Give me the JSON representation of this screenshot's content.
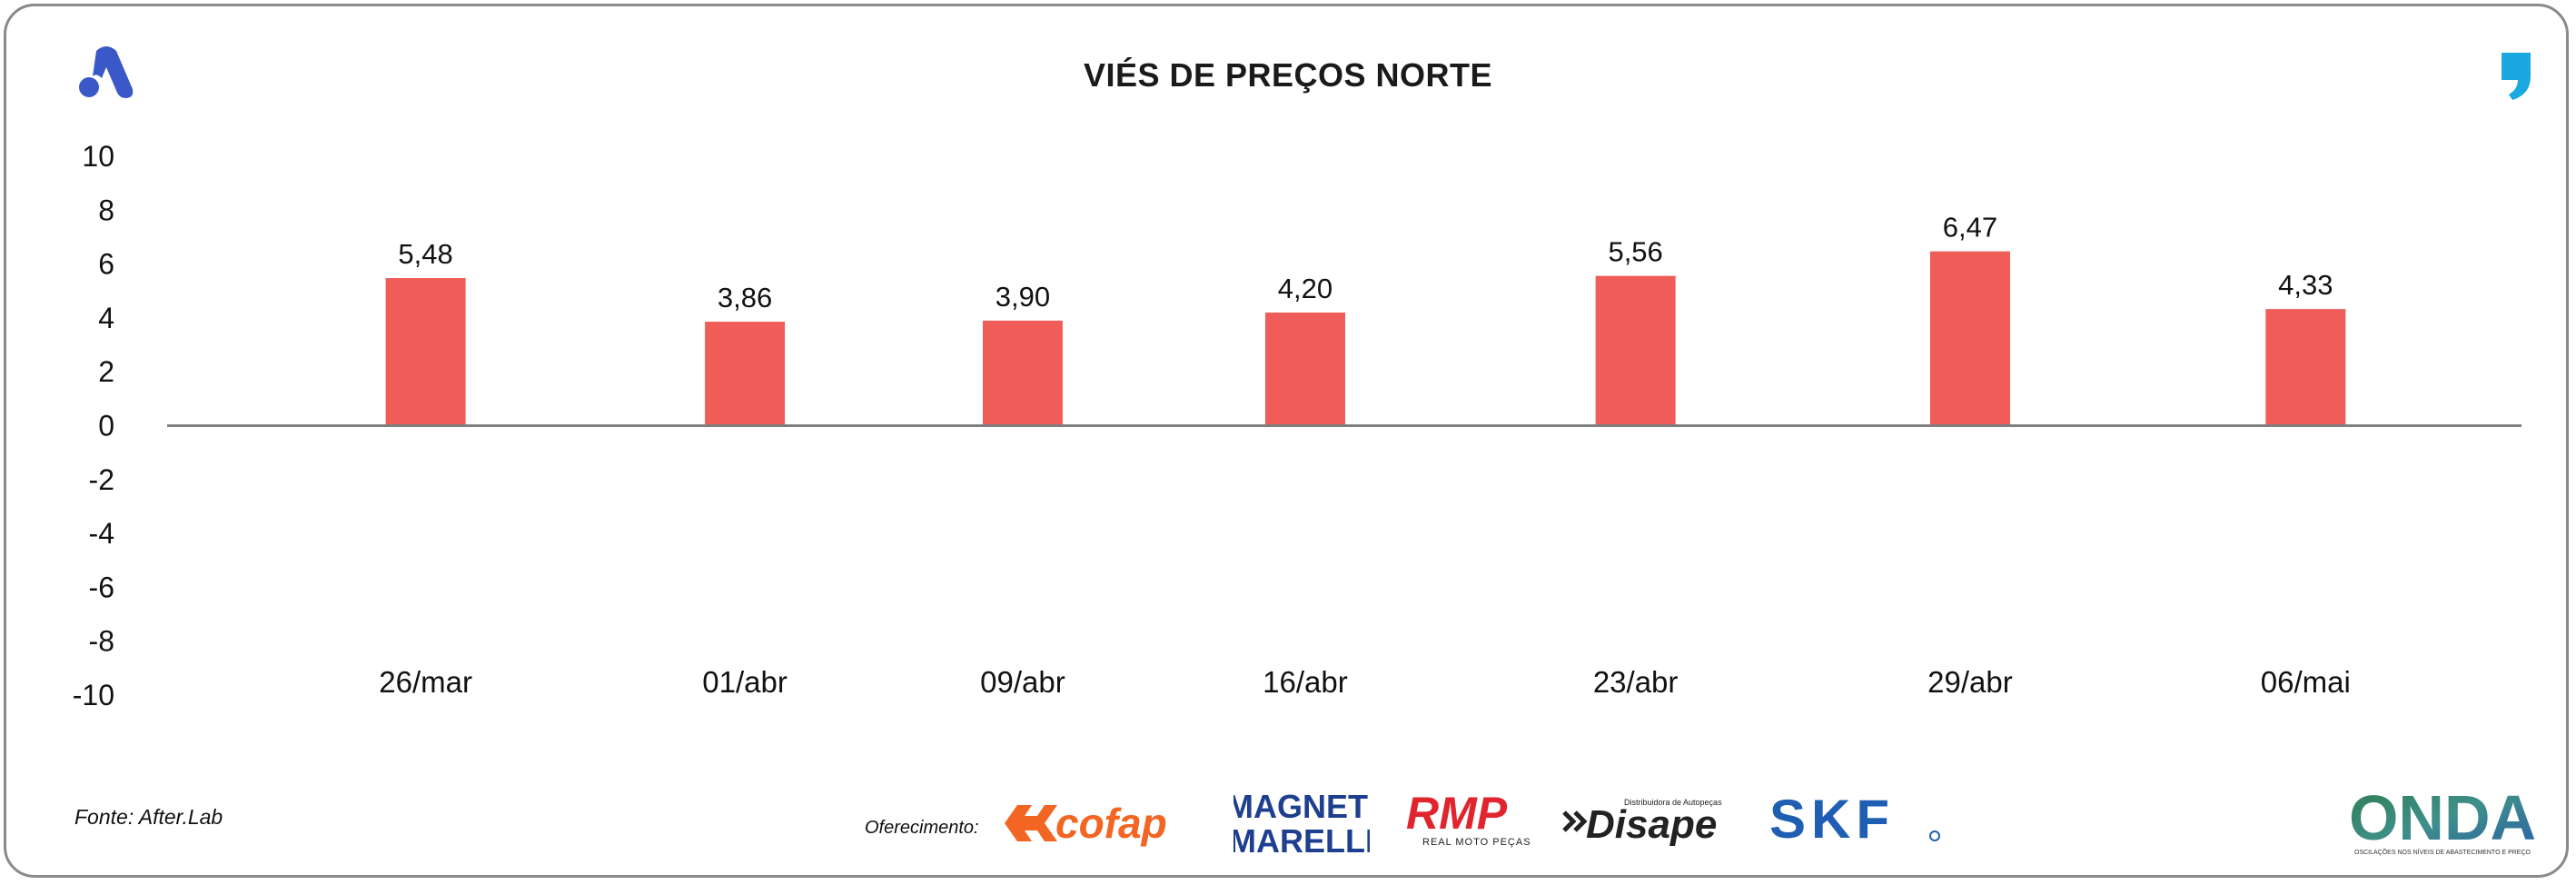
{
  "title": "VIÉS DE PREÇOS NORTE",
  "source": "Fonte: After.Lab",
  "offered_by": "Oferecimento:",
  "sponsors": {
    "cofap": "cofap",
    "magneti_line1": "MAGNETI",
    "magneti_line2": "MARELLI",
    "rmp": "RMP",
    "rmp_sub": "REAL MOTO PEÇAS",
    "disape_top": "Distribuidora de Autopeças",
    "disape": "Disape",
    "skf": "SKF",
    "onda": "ONDA",
    "onda_sub": "OSCILAÇÕES NOS NÍVEIS DE ABASTECIMENTO E PREÇO"
  },
  "colors": {
    "bar": "#f05c57",
    "axis": "#7f7f7f",
    "brand_blue": "#3b58c8",
    "quote_cyan": "#1aa8e0",
    "cofap_orange": "#f26522",
    "magneti_blue": "#1e3f8f",
    "rmp_red": "#e0252f",
    "skf_blue": "#1f5fb3"
  },
  "chart_data": {
    "type": "bar",
    "title": "VIÉS DE PREÇOS NORTE",
    "categories": [
      "26/mar",
      "01/abr",
      "09/abr",
      "16/abr",
      "23/abr",
      "29/abr",
      "06/mai"
    ],
    "values": [
      5.48,
      3.86,
      3.9,
      4.2,
      5.56,
      6.47,
      4.33
    ],
    "data_labels": [
      "5,48",
      "3,86",
      "3,90",
      "4,20",
      "5,56",
      "6,47",
      "4,33"
    ],
    "yticks": [
      "10",
      "8",
      "6",
      "4",
      "2",
      "0",
      "-2",
      "-4",
      "-6",
      "-8",
      "-10"
    ],
    "ylim": [
      -10,
      10
    ],
    "xlabel": "",
    "ylabel": "",
    "grid": false,
    "legend": "none"
  }
}
